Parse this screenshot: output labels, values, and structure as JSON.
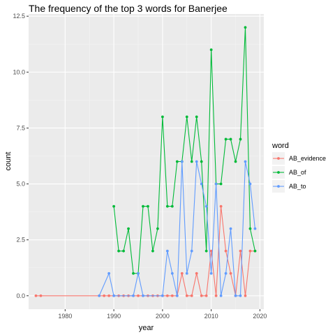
{
  "chart_data": {
    "type": "line",
    "title": "The frequency of the top 3 words for  Banerjee",
    "xlabel": "year",
    "ylabel": "count",
    "xlim": [
      1972.5,
      2020.8
    ],
    "ylim": [
      -0.6,
      12.6
    ],
    "x_ticks": [
      1980,
      1990,
      2000,
      2010,
      2020
    ],
    "y_ticks": [
      0.0,
      2.5,
      5.0,
      7.5,
      10.0,
      12.5
    ],
    "x_tick_labels": [
      "1980",
      "1990",
      "2000",
      "2010",
      "2020"
    ],
    "y_tick_labels": [
      "0.0",
      "2.5",
      "5.0",
      "7.5",
      "10.0",
      "12.5"
    ],
    "grid": true,
    "legend": {
      "title": "word",
      "position": "right"
    },
    "series": [
      {
        "name": "AB_evidence",
        "color": "#F8766D",
        "points": [
          [
            1974,
            0
          ],
          [
            1975,
            0
          ],
          [
            1987,
            0
          ],
          [
            1988,
            0
          ],
          [
            1989,
            0
          ],
          [
            1990,
            0
          ],
          [
            1991,
            0
          ],
          [
            1992,
            0
          ],
          [
            1993,
            0
          ],
          [
            1994,
            0
          ],
          [
            1995,
            0
          ],
          [
            1996,
            0
          ],
          [
            1997,
            0
          ],
          [
            1998,
            0
          ],
          [
            1999,
            0
          ],
          [
            2000,
            0
          ],
          [
            2001,
            0
          ],
          [
            2002,
            0
          ],
          [
            2003,
            0
          ],
          [
            2004,
            1
          ],
          [
            2005,
            0
          ],
          [
            2006,
            0
          ],
          [
            2007,
            1
          ],
          [
            2008,
            0
          ],
          [
            2009,
            0
          ],
          [
            2010,
            2
          ],
          [
            2011,
            0
          ],
          [
            2012,
            4
          ],
          [
            2013,
            2
          ],
          [
            2014,
            1
          ],
          [
            2015,
            0
          ],
          [
            2016,
            2
          ],
          [
            2017,
            0
          ],
          [
            2018,
            2
          ],
          [
            2019,
            2
          ]
        ]
      },
      {
        "name": "AB_of",
        "color": "#00BA38",
        "points": [
          [
            1990,
            4
          ],
          [
            1991,
            2
          ],
          [
            1992,
            2
          ],
          [
            1993,
            3
          ],
          [
            1994,
            1
          ],
          [
            1995,
            1
          ],
          [
            1996,
            4
          ],
          [
            1997,
            4
          ],
          [
            1998,
            2
          ],
          [
            1999,
            3
          ],
          [
            2000,
            8
          ],
          [
            2001,
            4
          ],
          [
            2002,
            4
          ],
          [
            2003,
            6
          ],
          [
            2004,
            6
          ],
          [
            2005,
            8
          ],
          [
            2006,
            6
          ],
          [
            2007,
            8
          ],
          [
            2008,
            6
          ],
          [
            2009,
            2
          ],
          [
            2010,
            11
          ],
          [
            2011,
            5
          ],
          [
            2012,
            5
          ],
          [
            2013,
            7
          ],
          [
            2014,
            7
          ],
          [
            2015,
            6
          ],
          [
            2016,
            7
          ],
          [
            2017,
            12
          ],
          [
            2018,
            3
          ],
          [
            2019,
            2
          ]
        ]
      },
      {
        "name": "AB_to",
        "color": "#619CFF",
        "points": [
          [
            1987,
            0
          ],
          [
            1989,
            1
          ],
          [
            1990,
            0
          ],
          [
            1994,
            0
          ],
          [
            1995,
            1
          ],
          [
            1996,
            0
          ],
          [
            2000,
            0
          ],
          [
            2001,
            2
          ],
          [
            2002,
            1
          ],
          [
            2003,
            0
          ],
          [
            2004,
            6
          ],
          [
            2005,
            1
          ],
          [
            2006,
            2
          ],
          [
            2007,
            6
          ],
          [
            2008,
            5
          ],
          [
            2009,
            4
          ],
          [
            2010,
            1
          ],
          [
            2011,
            5
          ],
          [
            2012,
            0
          ],
          [
            2013,
            1
          ],
          [
            2014,
            3
          ],
          [
            2015,
            0
          ],
          [
            2016,
            0
          ],
          [
            2017,
            6
          ],
          [
            2018,
            5
          ],
          [
            2019,
            3
          ]
        ]
      }
    ]
  }
}
